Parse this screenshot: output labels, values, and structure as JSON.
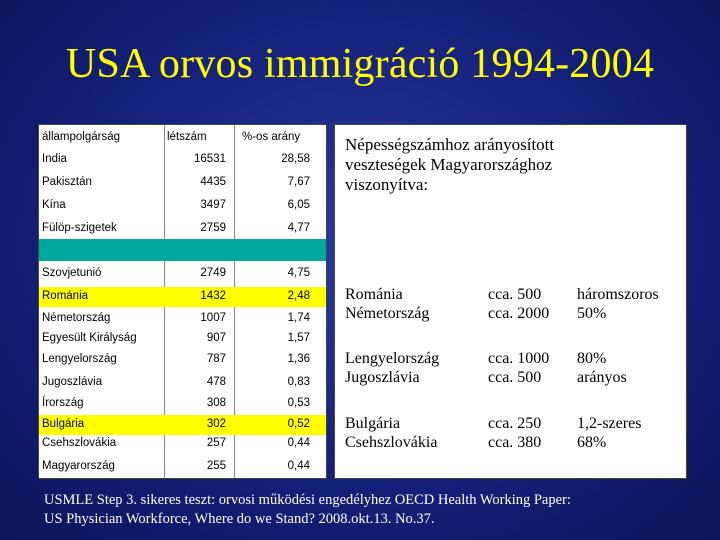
{
  "title": "USA orvos immigráció 1994-2004",
  "table": {
    "headers": [
      "állampolgárság",
      "létszám",
      "%-os arány"
    ],
    "rows": [
      {
        "country": "India",
        "count": "16531",
        "percent": "28,58",
        "highlight": false
      },
      {
        "country": "Pakisztán",
        "count": "4435",
        "percent": "7,67",
        "highlight": false
      },
      {
        "country": "Kína",
        "count": "3497",
        "percent": "6,05",
        "highlight": false
      },
      {
        "country": "Fülöp-szigetek",
        "count": "2759",
        "percent": "4,77",
        "highlight": false
      },
      {
        "country": "",
        "count": "",
        "percent": "",
        "highlight": false,
        "teal": true
      },
      {
        "country": "Szovjetunió",
        "count": "2749",
        "percent": "4,75",
        "highlight": false
      },
      {
        "country": "Románia",
        "count": "1432",
        "percent": "2,48",
        "highlight": true
      },
      {
        "country": "Németország",
        "count": "1007",
        "percent": "1,74",
        "highlight": false
      },
      {
        "country": "Egyesült Királyság",
        "count": "907",
        "percent": "1,57",
        "highlight": false
      },
      {
        "country": "Lengyelország",
        "count": "787",
        "percent": "1,36",
        "highlight": false
      },
      {
        "country": "Jugoszlávia",
        "count": "478",
        "percent": "0,83",
        "highlight": false
      },
      {
        "country": "Írország",
        "count": "308",
        "percent": "0,53",
        "highlight": false
      },
      {
        "country": "Bulgária",
        "count": "302",
        "percent": "0,52",
        "highlight": true
      },
      {
        "country": "Csehszlovákia",
        "count": "257",
        "percent": "0,44",
        "highlight": false
      },
      {
        "country": "Magyarország",
        "count": "255",
        "percent": "0,44",
        "highlight": false
      }
    ]
  },
  "info": {
    "note": "Népességszámhoz arányosított\nveszteségek Magyarországhoz\nviszonyítva:",
    "groups": [
      {
        "countries": "Románia\nNémetország",
        "values": "cca.  500\ncca. 2000",
        "ratio": "háromszoros\n50%"
      },
      {
        "countries": "Lengyelország\nJugoszlávia",
        "values": "cca. 1000\ncca.  500",
        "ratio": "80%\narányos"
      },
      {
        "countries": "Bulgária\nCsehszlovákia",
        "values": "cca.  250\ncca.  380",
        "ratio": "1,2-szeres\n68%"
      }
    ]
  },
  "footer": {
    "line1": "USMLE Step 3. sikeres teszt: orvosi működési engedélyhez     OECD Health Working Paper:",
    "line2": "US Physician Workforce, Where do we Stand?  2008.okt.13. No.37."
  }
}
